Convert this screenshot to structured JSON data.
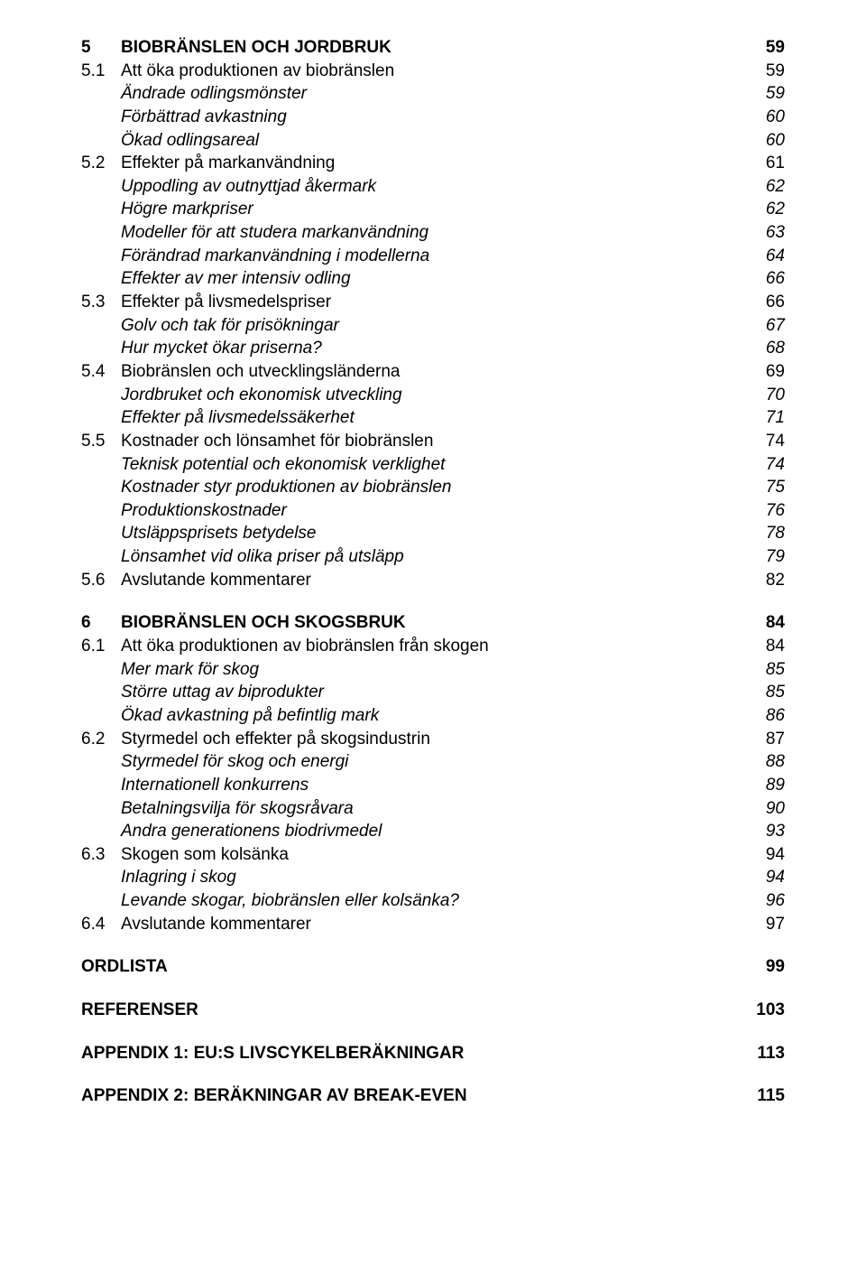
{
  "entries": [
    {
      "type": "chapter",
      "num": "5",
      "title": "BIOBRÄNSLEN OCH JORDBRUK",
      "page": "59",
      "first": true
    },
    {
      "type": "section",
      "num": "5.1",
      "title": "Att öka produktionen av biobränslen",
      "page": "59"
    },
    {
      "type": "sub",
      "title": "Ändrade odlingsmönster",
      "page": "59"
    },
    {
      "type": "sub",
      "title": "Förbättrad avkastning",
      "page": "60"
    },
    {
      "type": "sub",
      "title": "Ökad odlingsareal",
      "page": "60"
    },
    {
      "type": "section",
      "num": "5.2",
      "title": "Effekter på markanvändning",
      "page": "61"
    },
    {
      "type": "sub",
      "title": "Uppodling av outnyttjad åkermark",
      "page": "62"
    },
    {
      "type": "sub",
      "title": "Högre markpriser",
      "page": "62"
    },
    {
      "type": "sub",
      "title": "Modeller för att studera markanvändning",
      "page": "63"
    },
    {
      "type": "sub",
      "title": "Förändrad markanvändning i modellerna",
      "page": "64"
    },
    {
      "type": "sub",
      "title": "Effekter av mer intensiv odling",
      "page": "66"
    },
    {
      "type": "section",
      "num": "5.3",
      "title": "Effekter på livsmedelspriser",
      "page": "66"
    },
    {
      "type": "sub",
      "title": "Golv och tak för prisökningar",
      "page": "67"
    },
    {
      "type": "sub",
      "title": "Hur mycket ökar priserna?",
      "page": "68"
    },
    {
      "type": "section",
      "num": "5.4",
      "title": "Biobränslen och utvecklingsländerna",
      "page": "69"
    },
    {
      "type": "sub",
      "title": "Jordbruket och ekonomisk utveckling",
      "page": "70"
    },
    {
      "type": "sub",
      "title": "Effekter på livsmedelssäkerhet",
      "page": "71"
    },
    {
      "type": "section",
      "num": "5.5",
      "title": "Kostnader och lönsamhet för biobränslen",
      "page": "74"
    },
    {
      "type": "sub",
      "title": "Teknisk potential och ekonomisk verklighet",
      "page": "74"
    },
    {
      "type": "sub",
      "title": "Kostnader styr produktionen av biobränslen",
      "page": "75"
    },
    {
      "type": "sub",
      "title": "Produktionskostnader",
      "page": "76"
    },
    {
      "type": "sub",
      "title": "Utsläppsprisets betydelse",
      "page": "78"
    },
    {
      "type": "sub",
      "title": "Lönsamhet vid olika priser på utsläpp",
      "page": "79"
    },
    {
      "type": "section",
      "num": "5.6",
      "title": "Avslutande kommentarer",
      "page": "82"
    },
    {
      "type": "chapter",
      "num": "6",
      "title": "BIOBRÄNSLEN OCH SKOGSBRUK",
      "page": "84"
    },
    {
      "type": "section",
      "num": "6.1",
      "title": "Att öka produktionen av biobränslen från skogen",
      "page": "84"
    },
    {
      "type": "sub",
      "title": "Mer mark för skog",
      "page": "85"
    },
    {
      "type": "sub",
      "title": "Större uttag av biprodukter",
      "page": "85"
    },
    {
      "type": "sub",
      "title": "Ökad avkastning på befintlig mark",
      "page": "86"
    },
    {
      "type": "section",
      "num": "6.2",
      "title": "Styrmedel och effekter på skogsindustrin",
      "page": "87"
    },
    {
      "type": "sub",
      "title": "Styrmedel för skog och energi",
      "page": "88"
    },
    {
      "type": "sub",
      "title": "Internationell konkurrens",
      "page": "89"
    },
    {
      "type": "sub",
      "title": "Betalningsvilja för skogsråvara",
      "page": "90"
    },
    {
      "type": "sub",
      "title": "Andra generationens biodrivmedel",
      "page": "93"
    },
    {
      "type": "section",
      "num": "6.3",
      "title": "Skogen som kolsänka",
      "page": "94"
    },
    {
      "type": "sub",
      "title": "Inlagring i skog",
      "page": "94"
    },
    {
      "type": "sub",
      "title": "Levande skogar, biobränslen eller kolsänka?",
      "page": "96"
    },
    {
      "type": "section",
      "num": "6.4",
      "title": "Avslutande kommentarer",
      "page": "97"
    },
    {
      "type": "standalone",
      "title": "ORDLISTA",
      "page": "99"
    },
    {
      "type": "standalone",
      "title": "REFERENSER",
      "page": "103"
    },
    {
      "type": "standalone",
      "title": "APPENDIX 1: EU:S LIVSCYKELBERÄKNINGAR",
      "page": "113"
    },
    {
      "type": "standalone",
      "title": "APPENDIX 2: BERÄKNINGAR AV BREAK-EVEN",
      "page": "115"
    }
  ]
}
